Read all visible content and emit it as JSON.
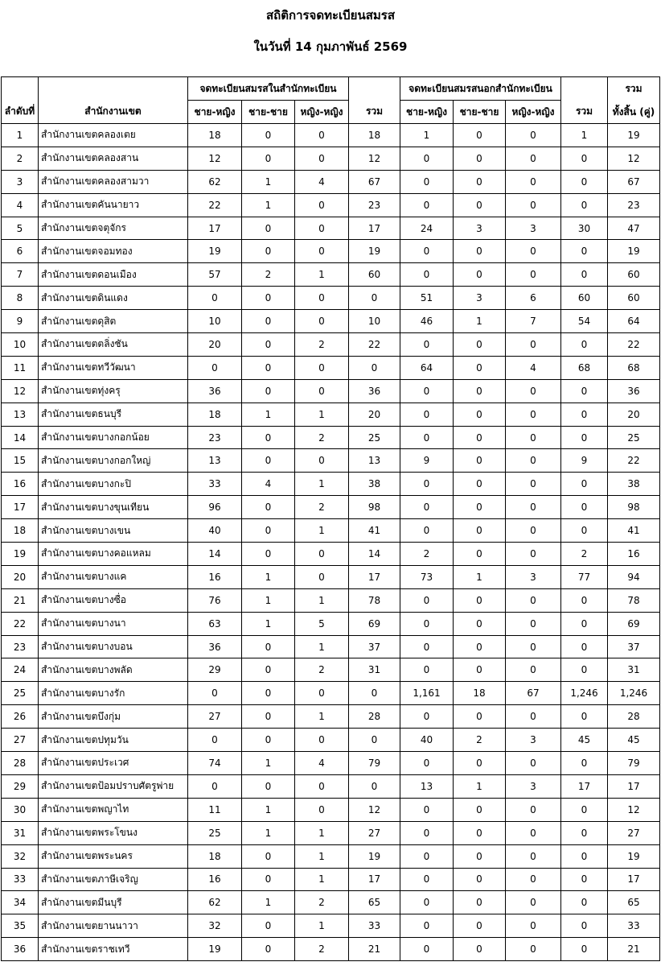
{
  "header": {
    "title": "สถิติการจดทะเบียนสมรส",
    "subtitle": "ในวันที่ 14 กุมภาพันธ์ 2569"
  },
  "table": {
    "columns": {
      "no": "ลำดับที่",
      "office": "สำนักงานเขต",
      "group_in": "จดทะเบียนสมรสในสำนักทะเบียน",
      "group_out": "จดทะเบียนสมรสนอกสำนักทะเบียน",
      "in_sub": [
        "ชาย-หญิง",
        "ชาย-ชาย",
        "หญิง-หญิง"
      ],
      "in_total": "รวม",
      "out_sub": [
        "ชาย-หญิง",
        "ชาย-ชาย",
        "หญิง-หญิง"
      ],
      "out_total": "รวม",
      "grand_total": [
        "รวม",
        "ทั้งสิ้น (คู่)"
      ]
    },
    "rows": [
      [
        1,
        "สำนักงานเขตคลองเตย",
        18,
        0,
        0,
        18,
        1,
        0,
        0,
        1,
        19
      ],
      [
        2,
        "สำนักงานเขตคลองสาน",
        12,
        0,
        0,
        12,
        0,
        0,
        0,
        0,
        12
      ],
      [
        3,
        "สำนักงานเขตคลองสามวา",
        62,
        1,
        4,
        67,
        0,
        0,
        0,
        0,
        67
      ],
      [
        4,
        "สำนักงานเขตคันนายาว",
        22,
        1,
        0,
        23,
        0,
        0,
        0,
        0,
        23
      ],
      [
        5,
        "สำนักงานเขตจตุจักร",
        17,
        0,
        0,
        17,
        24,
        3,
        3,
        30,
        47
      ],
      [
        6,
        "สำนักงานเขตจอมทอง",
        19,
        0,
        0,
        19,
        0,
        0,
        0,
        0,
        19
      ],
      [
        7,
        "สำนักงานเขตดอนเมือง",
        57,
        2,
        1,
        60,
        0,
        0,
        0,
        0,
        60
      ],
      [
        8,
        "สำนักงานเขตดินแดง",
        0,
        0,
        0,
        0,
        51,
        3,
        6,
        60,
        60
      ],
      [
        9,
        "สำนักงานเขตดุสิต",
        10,
        0,
        0,
        10,
        46,
        1,
        7,
        54,
        64
      ],
      [
        10,
        "สำนักงานเขตตลิ่งชัน",
        20,
        0,
        2,
        22,
        0,
        0,
        0,
        0,
        22
      ],
      [
        11,
        "สำนักงานเขตทวีวัฒนา",
        0,
        0,
        0,
        0,
        64,
        0,
        4,
        68,
        68
      ],
      [
        12,
        "สำนักงานเขตทุ่งครุ",
        36,
        0,
        0,
        36,
        0,
        0,
        0,
        0,
        36
      ],
      [
        13,
        "สำนักงานเขตธนบุรี",
        18,
        1,
        1,
        20,
        0,
        0,
        0,
        0,
        20
      ],
      [
        14,
        "สำนักงานเขตบางกอกน้อย",
        23,
        0,
        2,
        25,
        0,
        0,
        0,
        0,
        25
      ],
      [
        15,
        "สำนักงานเขตบางกอกใหญ่",
        13,
        0,
        0,
        13,
        9,
        0,
        0,
        9,
        22
      ],
      [
        16,
        "สำนักงานเขตบางกะปิ",
        33,
        4,
        1,
        38,
        0,
        0,
        0,
        0,
        38
      ],
      [
        17,
        "สำนักงานเขตบางขุนเทียน",
        96,
        0,
        2,
        98,
        0,
        0,
        0,
        0,
        98
      ],
      [
        18,
        "สำนักงานเขตบางเขน",
        40,
        0,
        1,
        41,
        0,
        0,
        0,
        0,
        41
      ],
      [
        19,
        "สำนักงานเขตบางคอแหลม",
        14,
        0,
        0,
        14,
        2,
        0,
        0,
        2,
        16
      ],
      [
        20,
        "สำนักงานเขตบางแค",
        16,
        1,
        0,
        17,
        73,
        1,
        3,
        77,
        94
      ],
      [
        21,
        "สำนักงานเขตบางซื่อ",
        76,
        1,
        1,
        78,
        0,
        0,
        0,
        0,
        78
      ],
      [
        22,
        "สำนักงานเขตบางนา",
        63,
        1,
        5,
        69,
        0,
        0,
        0,
        0,
        69
      ],
      [
        23,
        "สำนักงานเขตบางบอน",
        36,
        0,
        1,
        37,
        0,
        0,
        0,
        0,
        37
      ],
      [
        24,
        "สำนักงานเขตบางพลัด",
        29,
        0,
        2,
        31,
        0,
        0,
        0,
        0,
        31
      ],
      [
        25,
        "สำนักงานเขตบางรัก",
        0,
        0,
        0,
        0,
        "1,161",
        18,
        67,
        "1,246",
        "1,246"
      ],
      [
        26,
        "สำนักงานเขตบึงกุ่ม",
        27,
        0,
        1,
        28,
        0,
        0,
        0,
        0,
        28
      ],
      [
        27,
        "สำนักงานเขตปทุมวัน",
        0,
        0,
        0,
        0,
        40,
        2,
        3,
        45,
        45
      ],
      [
        28,
        "สำนักงานเขตประเวศ",
        74,
        1,
        4,
        79,
        0,
        0,
        0,
        0,
        79
      ],
      [
        29,
        "สำนักงานเขตป้อมปราบศัตรูพ่าย",
        0,
        0,
        0,
        0,
        13,
        1,
        3,
        17,
        17
      ],
      [
        30,
        "สำนักงานเขตพญาไท",
        11,
        1,
        0,
        12,
        0,
        0,
        0,
        0,
        12
      ],
      [
        31,
        "สำนักงานเขตพระโขนง",
        25,
        1,
        1,
        27,
        0,
        0,
        0,
        0,
        27
      ],
      [
        32,
        "สำนักงานเขตพระนคร",
        18,
        0,
        1,
        19,
        0,
        0,
        0,
        0,
        19
      ],
      [
        33,
        "สำนักงานเขตภาษีเจริญ",
        16,
        0,
        1,
        17,
        0,
        0,
        0,
        0,
        17
      ],
      [
        34,
        "สำนักงานเขตมีนบุรี",
        62,
        1,
        2,
        65,
        0,
        0,
        0,
        0,
        65
      ],
      [
        35,
        "สำนักงานเขตยานนาวา",
        32,
        0,
        1,
        33,
        0,
        0,
        0,
        0,
        33
      ],
      [
        36,
        "สำนักงานเขตราชเทวี",
        19,
        0,
        2,
        21,
        0,
        0,
        0,
        0,
        21
      ]
    ]
  }
}
